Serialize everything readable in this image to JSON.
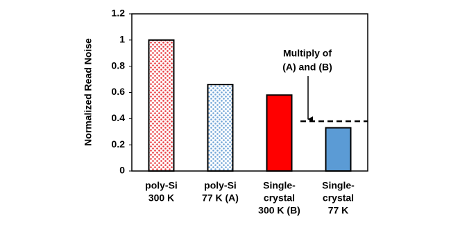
{
  "chart_data": {
    "type": "bar",
    "y_label": "Normalized Read Noise",
    "categories": [
      [
        "poly-Si",
        "300 K"
      ],
      [
        "poly-Si",
        "77 K (A)"
      ],
      [
        "Single-",
        "crystal",
        "300 K (B)"
      ],
      [
        "Single-",
        "crystal",
        "77 K"
      ]
    ],
    "values": [
      1.0,
      0.66,
      0.58,
      0.33
    ],
    "colors": [
      "#e8383d",
      "#6fa3d6",
      "#ff0000",
      "#5b9bd5"
    ],
    "patterned": [
      true,
      true,
      false,
      false
    ],
    "ylim": [
      0,
      1.2
    ],
    "yticks": [
      0,
      0.2,
      0.4,
      0.6,
      0.8,
      1,
      1.2
    ],
    "grid": false,
    "reference_line": {
      "value": 0.38,
      "annotation": [
        "Multiply of",
        "(A) and (B)"
      ]
    }
  }
}
